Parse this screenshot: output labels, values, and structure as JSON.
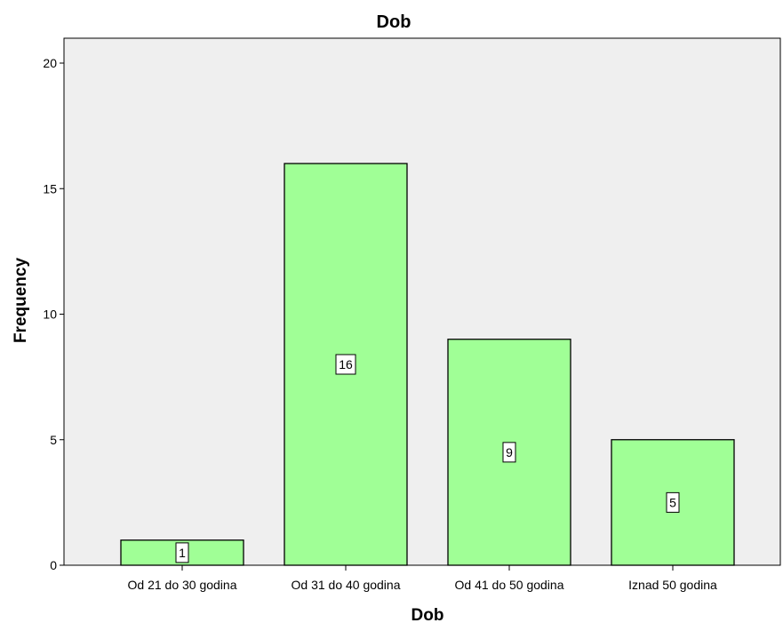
{
  "chart_data": {
    "type": "bar",
    "title": "Dob",
    "xlabel": "Dob",
    "ylabel": "Frequency",
    "categories": [
      "Od 21 do 30 godina",
      "Od 31 do 40 godina",
      "Od 41 do 50 godina",
      "Iznad 50 godina"
    ],
    "values": [
      1,
      16,
      9,
      5
    ],
    "data_labels": [
      "1",
      "16",
      "9",
      "5"
    ],
    "ylim": [
      0,
      21
    ],
    "yticks": [
      0,
      5,
      10,
      15,
      20
    ],
    "ytick_labels": [
      "0",
      "5",
      "10",
      "15",
      "20"
    ],
    "grid": false,
    "legend": "none",
    "colors": {
      "bar_fill": "#a0ff96",
      "bar_stroke": "#000000",
      "plot_background": "#efefef"
    }
  }
}
